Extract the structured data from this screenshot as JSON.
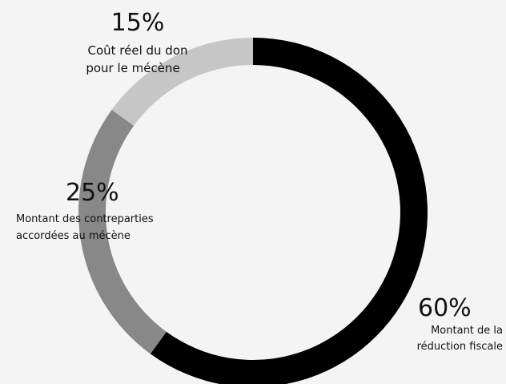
{
  "chart_data": {
    "type": "pie",
    "title": "",
    "categories": [
      "Montant de la réduction fiscale",
      "Montant des contreparties accordées au mécène",
      "Coût réel du don pour le mécène"
    ],
    "values": [
      60,
      25,
      15
    ],
    "value_labels": [
      "60%",
      "25%",
      "15%"
    ],
    "colors": [
      "#000000",
      "#888888",
      "#c6c6c6"
    ],
    "start": "top",
    "direction": "clockwise",
    "donut": true,
    "legend": "none",
    "slice_labels": [
      {
        "pct": "60%",
        "lines": [
          "Montant de la",
          "réduction fiscale"
        ]
      },
      {
        "pct": "25%",
        "lines": [
          "Montant des contreparties",
          "accordées au mécène"
        ]
      },
      {
        "pct": "15%",
        "lines": [
          "Coût réel du don",
          "pour le mécène"
        ]
      }
    ]
  },
  "colors": {
    "background": "#f4f4f4",
    "text": "#111111"
  }
}
